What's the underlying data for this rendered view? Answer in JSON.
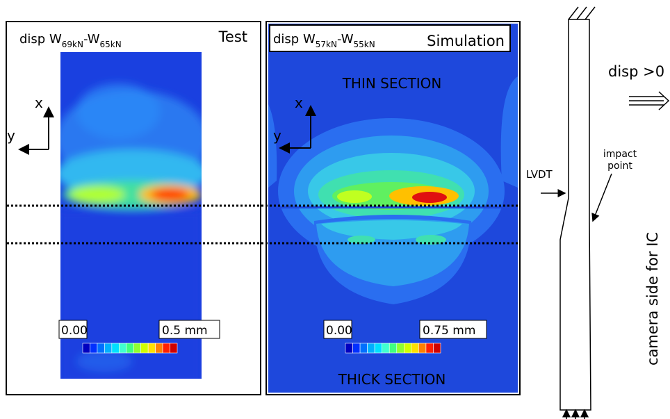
{
  "panels": [
    {
      "label": {
        "prefix": "disp W",
        "sub1": "69kN",
        "mid": "-W",
        "sub2": "65kN"
      },
      "name": "Test",
      "axes": {
        "x": "x",
        "y": "y"
      },
      "scale": {
        "min": "0.00",
        "max": "0.5 mm"
      }
    },
    {
      "label": {
        "prefix": "disp W",
        "sub1": "57kN",
        "mid": "-W",
        "sub2": "55kN"
      },
      "name": "Simulation",
      "axes": {
        "x": "x",
        "y": "y"
      },
      "scale": {
        "min": "0.00",
        "max": "0.75 mm"
      },
      "sections": {
        "top": "THIN SECTION",
        "bottom": "THICK SECTION"
      }
    }
  ],
  "specimen": {
    "direction": "disp >0",
    "lvdt": "LVDT",
    "impact": [
      "impact",
      "point"
    ],
    "camera": "camera side for IC"
  }
}
